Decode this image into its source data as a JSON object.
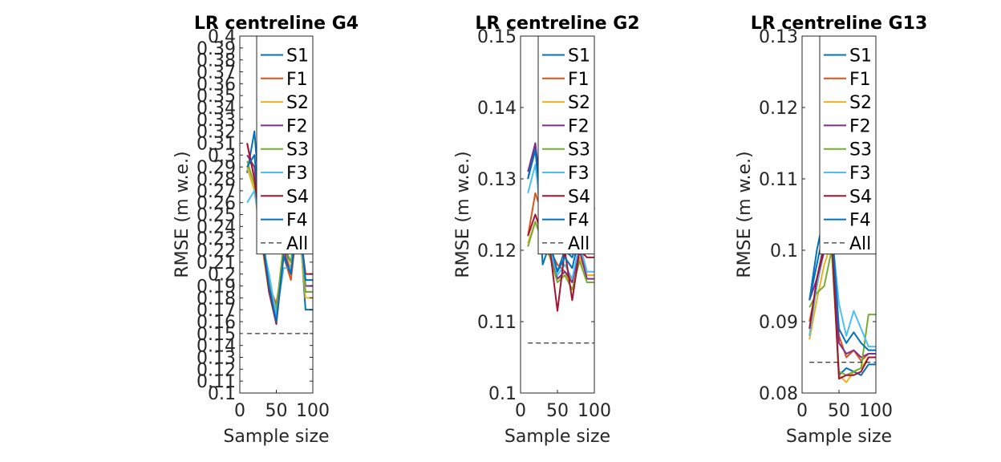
{
  "colors": {
    "S1": "#0072bd",
    "F1": "#d95319",
    "S2": "#edb120",
    "F2": "#7e2f8e",
    "S3": "#77ac30",
    "F3": "#4dbeee",
    "S4": "#a2142f",
    "F4": "#0072bd",
    "All": "#000000"
  },
  "chart_data": [
    {
      "type": "line",
      "title": "LR centreline G4",
      "xlabel": "Sample size",
      "ylabel": "RMSE (m w.e.)",
      "xlim": [
        0,
        100
      ],
      "ylim": [
        0.1,
        0.4
      ],
      "xticks": [
        "0",
        "50",
        "100"
      ],
      "yticks": [
        "0.1",
        "0.11",
        "0.12",
        "0.13",
        "0.14",
        "0.15",
        "0.16",
        "0.17",
        "0.18",
        "0.19",
        "0.2",
        "0.21",
        "0.22",
        "0.23",
        "0.24",
        "0.25",
        "0.26",
        "0.27",
        "0.28",
        "0.29",
        "0.3",
        "0.31",
        "0.32",
        "0.33",
        "0.34",
        "0.35",
        "0.36",
        "0.37",
        "0.38",
        "0.39",
        "0.4"
      ],
      "legend_position": "top-right",
      "x": [
        10,
        20,
        30,
        40,
        50,
        60,
        70,
        80,
        90,
        100
      ],
      "series": [
        {
          "name": "S1",
          "values": [
            0.285,
            0.32,
            0.24,
            0.19,
            0.16,
            0.22,
            0.21,
            0.26,
            0.17,
            0.17
          ]
        },
        {
          "name": "F1",
          "values": [
            0.31,
            0.28,
            0.23,
            0.19,
            0.175,
            0.215,
            0.195,
            0.25,
            0.185,
            0.185
          ]
        },
        {
          "name": "S2",
          "values": [
            0.29,
            0.27,
            0.225,
            0.185,
            0.17,
            0.22,
            0.205,
            0.245,
            0.18,
            0.18
          ]
        },
        {
          "name": "F2",
          "values": [
            0.3,
            0.29,
            0.235,
            0.19,
            0.165,
            0.22,
            0.2,
            0.25,
            0.19,
            0.19
          ]
        },
        {
          "name": "S3",
          "values": [
            0.295,
            0.275,
            0.23,
            0.195,
            0.17,
            0.225,
            0.21,
            0.255,
            0.185,
            0.185
          ]
        },
        {
          "name": "F3",
          "values": [
            0.26,
            0.27,
            0.23,
            0.2,
            0.165,
            0.205,
            0.205,
            0.24,
            0.195,
            0.195
          ]
        },
        {
          "name": "S4",
          "values": [
            0.31,
            0.28,
            0.23,
            0.185,
            0.158,
            0.215,
            0.2,
            0.25,
            0.2,
            0.2
          ]
        },
        {
          "name": "F4",
          "values": [
            0.29,
            0.3,
            0.235,
            0.19,
            0.16,
            0.215,
            0.2,
            0.255,
            0.195,
            0.195
          ]
        },
        {
          "name": "All",
          "values": [
            0.15,
            0.15,
            0.15,
            0.15,
            0.15,
            0.15,
            0.15,
            0.15,
            0.15,
            0.15
          ],
          "style": "dashed"
        }
      ],
      "legend": [
        "S1",
        "F1",
        "S2",
        "F2",
        "S3",
        "F3",
        "S4",
        "F4",
        "All"
      ]
    },
    {
      "type": "line",
      "title": "LR centreline G2",
      "xlabel": "Sample size",
      "ylabel": "RMSE (m w.e.)",
      "xlim": [
        0,
        100
      ],
      "ylim": [
        0.1,
        0.15
      ],
      "xticks": [
        "0",
        "50",
        "100"
      ],
      "yticks": [
        "0.1",
        "0.11",
        "0.12",
        "0.13",
        "0.14",
        "0.15"
      ],
      "legend_position": "top-right",
      "x": [
        10,
        20,
        30,
        40,
        50,
        60,
        70,
        80,
        90,
        100
      ],
      "series": [
        {
          "name": "S1",
          "values": [
            0.13,
            0.135,
            0.118,
            0.121,
            0.117,
            0.12,
            0.119,
            0.122,
            0.121,
            0.126
          ]
        },
        {
          "name": "F1",
          "values": [
            0.122,
            0.128,
            0.125,
            0.12,
            0.118,
            0.117,
            0.116,
            0.12,
            0.1165,
            0.1165
          ]
        },
        {
          "name": "S2",
          "values": [
            0.121,
            0.124,
            0.122,
            0.119,
            0.116,
            0.1165,
            0.1155,
            0.119,
            0.1165,
            0.1165
          ]
        },
        {
          "name": "F2",
          "values": [
            0.131,
            0.135,
            0.126,
            0.12,
            0.116,
            0.117,
            0.1155,
            0.12,
            0.116,
            0.116
          ]
        },
        {
          "name": "S3",
          "values": [
            0.1205,
            0.124,
            0.121,
            0.119,
            0.1155,
            0.1165,
            0.1145,
            0.1185,
            0.1155,
            0.1155
          ]
        },
        {
          "name": "F3",
          "values": [
            0.128,
            0.132,
            0.123,
            0.12,
            0.1165,
            0.118,
            0.116,
            0.121,
            0.117,
            0.117
          ]
        },
        {
          "name": "S4",
          "values": [
            0.122,
            0.125,
            0.122,
            0.12,
            0.1115,
            0.12,
            0.113,
            0.12,
            0.119,
            0.119
          ]
        },
        {
          "name": "F4",
          "values": [
            0.13,
            0.134,
            0.124,
            0.121,
            0.117,
            0.119,
            0.1175,
            0.122,
            0.125,
            0.125
          ]
        },
        {
          "name": "All",
          "values": [
            0.107,
            0.107,
            0.107,
            0.107,
            0.107,
            0.107,
            0.107,
            0.107,
            0.107,
            0.107
          ],
          "style": "dashed"
        }
      ],
      "legend": [
        "S1",
        "F1",
        "S2",
        "F2",
        "S3",
        "F3",
        "S4",
        "F4",
        "All"
      ]
    },
    {
      "type": "line",
      "title": "LR centreline G13",
      "xlabel": "Sample size",
      "ylabel": "RMSE (m w.e.)",
      "xlim": [
        0,
        100
      ],
      "ylim": [
        0.08,
        0.13
      ],
      "xticks": [
        "0",
        "50",
        "100"
      ],
      "yticks": [
        "0.08",
        "0.09",
        "0.1",
        "0.11",
        "0.12",
        "0.13"
      ],
      "legend_position": "top-right",
      "x": [
        10,
        20,
        30,
        40,
        50,
        60,
        70,
        80,
        90,
        100
      ],
      "series": [
        {
          "name": "S1",
          "values": [
            0.093,
            0.1,
            0.105,
            0.103,
            0.0825,
            0.0835,
            0.083,
            0.0825,
            0.084,
            0.084
          ]
        },
        {
          "name": "F1",
          "values": [
            0.09,
            0.095,
            0.1,
            0.101,
            0.088,
            0.085,
            0.086,
            0.0845,
            0.0855,
            0.0855
          ]
        },
        {
          "name": "S2",
          "values": [
            0.0875,
            0.093,
            0.098,
            0.101,
            0.0825,
            0.0815,
            0.083,
            0.0835,
            0.085,
            0.085
          ]
        },
        {
          "name": "F2",
          "values": [
            0.093,
            0.096,
            0.101,
            0.102,
            0.087,
            0.0855,
            0.086,
            0.085,
            0.0855,
            0.0855
          ]
        },
        {
          "name": "S3",
          "values": [
            0.092,
            0.094,
            0.095,
            0.1,
            0.083,
            0.0825,
            0.083,
            0.0835,
            0.091,
            0.091
          ]
        },
        {
          "name": "F3",
          "values": [
            0.088,
            0.095,
            0.1,
            0.103,
            0.0925,
            0.088,
            0.0915,
            0.089,
            0.0865,
            0.0865
          ]
        },
        {
          "name": "S4",
          "values": [
            0.089,
            0.096,
            0.1,
            0.102,
            0.082,
            0.0825,
            0.0825,
            0.083,
            0.085,
            0.085
          ]
        },
        {
          "name": "F4",
          "values": [
            0.093,
            0.098,
            0.103,
            0.104,
            0.089,
            0.087,
            0.0885,
            0.087,
            0.086,
            0.086
          ]
        },
        {
          "name": "All",
          "values": [
            0.0843,
            0.0843,
            0.0843,
            0.0843,
            0.0843,
            0.0843,
            0.0843,
            0.0843,
            0.0843,
            0.0843
          ],
          "style": "dashed"
        }
      ],
      "legend": [
        "S1",
        "F1",
        "S2",
        "F2",
        "S3",
        "F3",
        "S4",
        "F4",
        "All"
      ]
    }
  ]
}
